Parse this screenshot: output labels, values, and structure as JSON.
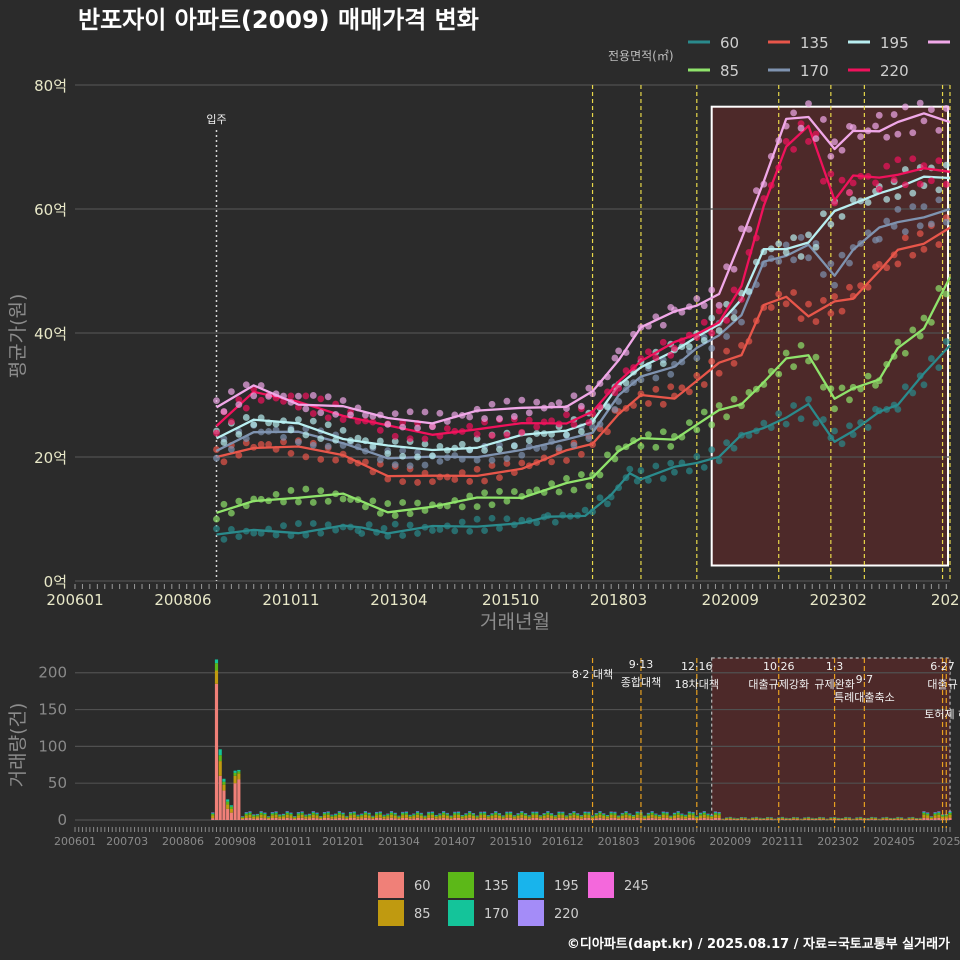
{
  "page": {
    "title": "반포자이 아파트(2009) 매매가격 변화",
    "credit": "©디아파트(dapt.kr) / 2025.08.17 / 자료=국토교통부 실거래가",
    "legend_title": "전용면적(㎡)"
  },
  "colors": {
    "background": "#2b2b2b",
    "grid": "#505050",
    "annotation_line": "#e8d84a",
    "marker_line": "#d6d6d6",
    "highlight_fill": "#5a2a2a",
    "highlight_stroke": "#ffffff"
  },
  "chart_data": [
    {
      "type": "line",
      "name": "price",
      "xlabel": "거래년월",
      "ylabel": "평균가(원)",
      "ylim": [
        0,
        80
      ],
      "y_ticks": [
        0,
        20,
        40,
        60,
        80
      ],
      "y_tick_labels": [
        "0억",
        "20억",
        "40억",
        "60억",
        "80억"
      ],
      "x_range": [
        "2006-01",
        "2025-08"
      ],
      "x_ticks": [
        "2006-01",
        "2008-06",
        "2010-11",
        "2013-04",
        "2015-10",
        "2018-03",
        "2020-09",
        "2023-02",
        "2025-08"
      ],
      "x_tick_labels": [
        "200601",
        "200806",
        "201011",
        "201304",
        "201510",
        "201803",
        "202009",
        "202302",
        "2025"
      ],
      "marker": {
        "date": "2009-03",
        "label": "입주"
      },
      "policy_lines": [
        "2017-08",
        "2018-09",
        "2019-12",
        "2021-10",
        "2022-12",
        "2023-09",
        "2025-06",
        "2025-08"
      ],
      "highlight": {
        "x": [
          "2020-04",
          "2025-08"
        ],
        "y": [
          2.5,
          76.5
        ]
      },
      "series": [
        {
          "name": "60",
          "color": "#2a8a8c",
          "points": [
            [
              "2009-03",
              7.5
            ],
            [
              "2010-01",
              7.8
            ],
            [
              "2011-01",
              8.3
            ],
            [
              "2012-01",
              8.6
            ],
            [
              "2012-06",
              8.5
            ],
            [
              "2013-01",
              8.2
            ],
            [
              "2014-01",
              8.3
            ],
            [
              "2015-01",
              9.0
            ],
            [
              "2016-01",
              9.6
            ],
            [
              "2016-08",
              9.8
            ],
            [
              "2017-06",
              11.0
            ],
            [
              "2018-01",
              13.8
            ],
            [
              "2018-06",
              17.0
            ],
            [
              "2018-09",
              17.0
            ],
            [
              "2019-06",
              18.0
            ],
            [
              "2019-12",
              19.0
            ],
            [
              "2020-06",
              20.5
            ],
            [
              "2020-12",
              23.0
            ],
            [
              "2021-06",
              25.0
            ],
            [
              "2021-12",
              26.5
            ],
            [
              "2022-06",
              28.0
            ],
            [
              "2023-01",
              23.0
            ],
            [
              "2023-06",
              24.0
            ],
            [
              "2024-01",
              27.0
            ],
            [
              "2024-06",
              29.0
            ],
            [
              "2025-01",
              33.0
            ],
            [
              "2025-08",
              38.0
            ]
          ]
        },
        {
          "name": "85",
          "color": "#8fe36b",
          "points": [
            [
              "2009-03",
              11.0
            ],
            [
              "2010-01",
              13.0
            ],
            [
              "2011-01",
              13.8
            ],
            [
              "2012-01",
              13.5
            ],
            [
              "2013-01",
              11.5
            ],
            [
              "2014-01",
              12.0
            ],
            [
              "2015-01",
              13.0
            ],
            [
              "2016-01",
              14.0
            ],
            [
              "2017-01",
              15.5
            ],
            [
              "2017-08",
              16.5
            ],
            [
              "2018-03",
              21.5
            ],
            [
              "2018-09",
              22.5
            ],
            [
              "2019-06",
              23.0
            ],
            [
              "2019-12",
              25.5
            ],
            [
              "2020-06",
              27.0
            ],
            [
              "2020-12",
              29.0
            ],
            [
              "2021-06",
              32.0
            ],
            [
              "2021-12",
              35.5
            ],
            [
              "2022-06",
              37.0
            ],
            [
              "2023-01",
              29.0
            ],
            [
              "2023-06",
              31.0
            ],
            [
              "2024-01",
              33.0
            ],
            [
              "2024-06",
              37.0
            ],
            [
              "2025-01",
              41.0
            ],
            [
              "2025-08",
              49.0
            ]
          ]
        },
        {
          "name": "135",
          "color": "#e8564a",
          "points": [
            [
              "2009-03",
              20.0
            ],
            [
              "2010-01",
              22.0
            ],
            [
              "2011-01",
              21.5
            ],
            [
              "2012-01",
              20.0
            ],
            [
              "2013-01",
              17.5
            ],
            [
              "2014-01",
              16.5
            ],
            [
              "2015-01",
              17.0
            ],
            [
              "2016-01",
              18.5
            ],
            [
              "2017-01",
              20.5
            ],
            [
              "2017-08",
              22.5
            ],
            [
              "2018-03",
              27.0
            ],
            [
              "2018-09",
              29.5
            ],
            [
              "2019-06",
              30.0
            ],
            [
              "2019-12",
              32.0
            ],
            [
              "2020-06",
              35.0
            ],
            [
              "2020-12",
              37.0
            ],
            [
              "2021-06",
              44.0
            ],
            [
              "2021-12",
              46.0
            ],
            [
              "2022-06",
              43.0
            ],
            [
              "2023-01",
              44.5
            ],
            [
              "2023-06",
              46.0
            ],
            [
              "2024-01",
              50.0
            ],
            [
              "2024-06",
              53.0
            ],
            [
              "2025-01",
              55.0
            ],
            [
              "2025-08",
              57.0
            ]
          ]
        },
        {
          "name": "170",
          "color": "#7f93b0",
          "points": [
            [
              "2009-03",
              21.0
            ],
            [
              "2010-01",
              24.5
            ],
            [
              "2011-01",
              23.5
            ],
            [
              "2012-01",
              22.5
            ],
            [
              "2013-01",
              20.0
            ],
            [
              "2014-01",
              19.5
            ],
            [
              "2015-01",
              20.5
            ],
            [
              "2016-01",
              21.0
            ],
            [
              "2017-01",
              22.5
            ],
            [
              "2017-08",
              24.5
            ],
            [
              "2018-03",
              29.5
            ],
            [
              "2018-09",
              33.0
            ],
            [
              "2019-06",
              35.0
            ],
            [
              "2019-12",
              37.0
            ],
            [
              "2020-06",
              40.0
            ],
            [
              "2020-12",
              43.0
            ],
            [
              "2021-06",
              51.0
            ],
            [
              "2021-12",
              53.0
            ],
            [
              "2022-06",
              54.0
            ],
            [
              "2023-01",
              49.0
            ],
            [
              "2023-06",
              54.0
            ],
            [
              "2024-01",
              56.5
            ],
            [
              "2024-06",
              58.0
            ],
            [
              "2025-01",
              59.0
            ],
            [
              "2025-08",
              60.0
            ]
          ]
        },
        {
          "name": "195",
          "color": "#b8eef0",
          "points": [
            [
              "2009-03",
              23.0
            ],
            [
              "2010-01",
              26.0
            ],
            [
              "2011-01",
              25.0
            ],
            [
              "2012-01",
              23.5
            ],
            [
              "2013-01",
              21.5
            ],
            [
              "2014-01",
              21.0
            ],
            [
              "2015-01",
              22.0
            ],
            [
              "2016-01",
              23.0
            ],
            [
              "2017-01",
              24.5
            ],
            [
              "2017-08",
              26.0
            ],
            [
              "2018-03",
              31.0
            ],
            [
              "2018-09",
              35.0
            ],
            [
              "2019-06",
              37.0
            ],
            [
              "2019-12",
              39.0
            ],
            [
              "2020-06",
              42.0
            ],
            [
              "2020-12",
              45.0
            ],
            [
              "2021-06",
              53.5
            ],
            [
              "2021-12",
              54.0
            ],
            [
              "2022-06",
              54.0
            ],
            [
              "2023-01",
              60.0
            ],
            [
              "2023-06",
              61.0
            ],
            [
              "2024-01",
              62.0
            ],
            [
              "2024-06",
              64.0
            ],
            [
              "2025-01",
              65.0
            ],
            [
              "2025-08",
              65.0
            ]
          ]
        },
        {
          "name": "220",
          "color": "#f0125c",
          "points": [
            [
              "2009-03",
              25.0
            ],
            [
              "2010-01",
              30.0
            ],
            [
              "2011-01",
              29.0
            ],
            [
              "2012-01",
              27.0
            ],
            [
              "2013-01",
              24.5
            ],
            [
              "2014-01",
              24.0
            ],
            [
              "2015-01",
              24.5
            ],
            [
              "2016-01",
              25.0
            ],
            [
              "2017-01",
              26.0
            ],
            [
              "2017-08",
              27.0
            ],
            [
              "2018-03",
              32.0
            ],
            [
              "2018-09",
              36.0
            ],
            [
              "2019-06",
              38.0
            ],
            [
              "2019-12",
              40.0
            ],
            [
              "2020-06",
              42.0
            ],
            [
              "2020-12",
              47.0
            ],
            [
              "2021-06",
              61.0
            ],
            [
              "2021-12",
              70.0
            ],
            [
              "2022-06",
              73.0
            ],
            [
              "2023-01",
              62.0
            ],
            [
              "2023-06",
              65.0
            ],
            [
              "2024-01",
              65.0
            ],
            [
              "2024-06",
              66.0
            ],
            [
              "2025-01",
              66.0
            ],
            [
              "2025-08",
              66.0
            ]
          ]
        },
        {
          "name": "245",
          "color": "#f0a8e8",
          "points": [
            [
              "2009-03",
              28.0
            ],
            [
              "2010-01",
              31.0
            ],
            [
              "2011-01",
              29.0
            ],
            [
              "2012-01",
              28.0
            ],
            [
              "2013-01",
              26.0
            ],
            [
              "2014-01",
              26.0
            ],
            [
              "2015-01",
              27.0
            ],
            [
              "2016-01",
              28.0
            ],
            [
              "2017-01",
              28.5
            ],
            [
              "2017-08",
              30.0
            ],
            [
              "2018-03",
              36.0
            ],
            [
              "2018-09",
              41.0
            ],
            [
              "2019-06",
              43.0
            ],
            [
              "2019-12",
              45.0
            ],
            [
              "2020-06",
              46.0
            ],
            [
              "2020-12",
              55.0
            ],
            [
              "2021-06",
              65.0
            ],
            [
              "2021-12",
              74.0
            ],
            [
              "2022-06",
              75.0
            ],
            [
              "2023-01",
              70.0
            ],
            [
              "2023-06",
              72.0
            ],
            [
              "2024-01",
              73.0
            ],
            [
              "2024-06",
              74.0
            ],
            [
              "2025-01",
              75.0
            ],
            [
              "2025-08",
              74.0
            ]
          ]
        }
      ],
      "legend": {
        "title": "전용면적(㎡)",
        "placement": "top-right"
      }
    },
    {
      "type": "bar",
      "name": "volume",
      "xlabel": "",
      "ylabel": "거래량(건)",
      "ylim": [
        0,
        220
      ],
      "y_ticks": [
        0,
        50,
        100,
        150,
        200
      ],
      "x_ticks": [
        "2006-01",
        "2007-03",
        "2008-06",
        "2009-08",
        "2010-11",
        "2012-01",
        "2013-04",
        "2014-07",
        "2015-10",
        "2016-12",
        "2018-03",
        "2019-06",
        "2020-09",
        "2021-11",
        "2023-02",
        "2024-05",
        "2025-08"
      ],
      "x_tick_labels": [
        "200601",
        "200703",
        "200806",
        "200908",
        "201011",
        "201201",
        "201304",
        "201407",
        "201510",
        "201612",
        "201803",
        "201906",
        "202009",
        "202111",
        "202302",
        "202405",
        "20250"
      ],
      "policies": [
        {
          "date": "2017-08",
          "date_label": "8·2 대책",
          "label": ""
        },
        {
          "date": "2018-09",
          "date_label": "9·13",
          "label": "종합대책"
        },
        {
          "date": "2019-12",
          "date_label": "12·16",
          "label": "18차대책"
        },
        {
          "date": "2021-10",
          "date_label": "10·26",
          "label": "대출규제강화"
        },
        {
          "date": "2023-01",
          "date_label": "1·3",
          "label": "규제완화"
        },
        {
          "date": "2023-09",
          "date_label": "9·7",
          "label": "특례대출축소"
        },
        {
          "date": "2025-06",
          "date_label": "6·27",
          "label": "대출규"
        },
        {
          "date": "2025-07",
          "date_label": "",
          "label": "토허제 해"
        }
      ],
      "spikes": [
        {
          "date": "2009-03",
          "values": [
            185,
            18,
            10,
            5
          ]
        },
        {
          "date": "2009-04",
          "values": [
            60,
            20,
            8,
            8
          ]
        },
        {
          "date": "2009-05",
          "values": [
            40,
            8,
            4,
            4
          ]
        },
        {
          "date": "2009-06",
          "values": [
            15,
            6,
            4,
            3
          ]
        },
        {
          "date": "2009-07",
          "values": [
            10,
            5,
            3,
            2
          ]
        },
        {
          "date": "2009-08",
          "values": [
            50,
            10,
            4,
            3
          ]
        },
        {
          "date": "2009-09",
          "values": [
            55,
            8,
            3,
            2
          ]
        }
      ],
      "typical_monthly_volume": 12,
      "series": [
        {
          "name": "60",
          "color": "#f08078"
        },
        {
          "name": "85",
          "color": "#c09a10"
        },
        {
          "name": "135",
          "color": "#5cb818"
        },
        {
          "name": "170",
          "color": "#14c49a"
        },
        {
          "name": "195",
          "color": "#18b4ec"
        },
        {
          "name": "220",
          "color": "#a48cf8"
        },
        {
          "name": "245",
          "color": "#f468dc"
        }
      ],
      "legend": {
        "placement": "bottom"
      }
    }
  ]
}
